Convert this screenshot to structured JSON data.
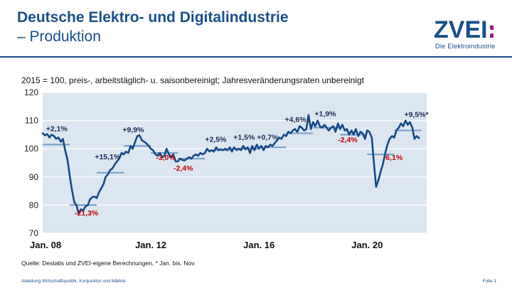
{
  "header": {
    "title": "Deutsche Elektro- und Digitalindustrie",
    "subtitle": "– Produktion",
    "logo_text": "ZVEI:",
    "logo_tagline": "Die Elektroindustrie"
  },
  "colors": {
    "brand": "#1a4f8a",
    "line": "#164a86",
    "average": "#7da3c9",
    "plot_bg": "#dce6f1",
    "positive_label": "#1a2a55",
    "negative_label": "#c00000"
  },
  "chart_data": {
    "type": "line",
    "subtitle": "2015 = 100,  preis-,  arbeitstäglich-  u.  saisonbereinigt;  Jahresveränderungsraten  unbereinigt",
    "ylim": [
      70,
      120
    ],
    "yticks": [
      120,
      110,
      100,
      90,
      80,
      70
    ],
    "xlim": [
      2008.0,
      2022.2
    ],
    "xticks": [
      {
        "label": "Jan. 08",
        "x": 2008.0
      },
      {
        "label": "Jan. 12",
        "x": 2012.0
      },
      {
        "label": "Jan. 16",
        "x": 2016.0
      },
      {
        "label": "Jan. 20",
        "x": 2020.0
      }
    ],
    "series": [
      {
        "points": [
          [
            2008.0,
            105.5
          ],
          [
            2008.08,
            104.8
          ],
          [
            2008.17,
            105.2
          ],
          [
            2008.25,
            104.0
          ],
          [
            2008.33,
            105.0
          ],
          [
            2008.42,
            104.5
          ],
          [
            2008.5,
            103.5
          ],
          [
            2008.58,
            104.0
          ],
          [
            2008.67,
            102.5
          ],
          [
            2008.75,
            103.5
          ],
          [
            2008.83,
            99.5
          ],
          [
            2008.92,
            96.0
          ],
          [
            2009.0,
            90.5
          ],
          [
            2009.08,
            85.5
          ],
          [
            2009.17,
            81.0
          ],
          [
            2009.25,
            80.0
          ],
          [
            2009.33,
            77.0
          ],
          [
            2009.42,
            78.5
          ],
          [
            2009.5,
            78.0
          ],
          [
            2009.58,
            79.5
          ],
          [
            2009.67,
            80.0
          ],
          [
            2009.75,
            82.0
          ],
          [
            2009.83,
            82.8
          ],
          [
            2009.92,
            83.0
          ],
          [
            2010.0,
            82.5
          ],
          [
            2010.08,
            84.5
          ],
          [
            2010.17,
            86.0
          ],
          [
            2010.25,
            87.5
          ],
          [
            2010.33,
            90.0
          ],
          [
            2010.42,
            91.0
          ],
          [
            2010.5,
            92.5
          ],
          [
            2010.58,
            93.0
          ],
          [
            2010.67,
            94.5
          ],
          [
            2010.75,
            95.5
          ],
          [
            2010.83,
            96.5
          ],
          [
            2010.92,
            98.5
          ],
          [
            2011.0,
            98.0
          ],
          [
            2011.08,
            99.0
          ],
          [
            2011.17,
            98.5
          ],
          [
            2011.25,
            101.0
          ],
          [
            2011.33,
            100.0
          ],
          [
            2011.42,
            102.5
          ],
          [
            2011.5,
            104.5
          ],
          [
            2011.58,
            104.8
          ],
          [
            2011.67,
            103.0
          ],
          [
            2011.75,
            102.5
          ],
          [
            2011.83,
            102.0
          ],
          [
            2011.92,
            101.0
          ],
          [
            2012.0,
            100.0
          ],
          [
            2012.08,
            99.5
          ],
          [
            2012.17,
            98.0
          ],
          [
            2012.25,
            97.5
          ],
          [
            2012.33,
            98.5
          ],
          [
            2012.42,
            97.0
          ],
          [
            2012.5,
            97.5
          ],
          [
            2012.58,
            100.0
          ],
          [
            2012.67,
            98.0
          ],
          [
            2012.75,
            97.0
          ],
          [
            2012.83,
            98.0
          ],
          [
            2012.92,
            95.5
          ],
          [
            2013.0,
            95.5
          ],
          [
            2013.08,
            96.5
          ],
          [
            2013.17,
            96.0
          ],
          [
            2013.25,
            95.8
          ],
          [
            2013.33,
            96.5
          ],
          [
            2013.42,
            97.0
          ],
          [
            2013.5,
            96.5
          ],
          [
            2013.58,
            97.5
          ],
          [
            2013.67,
            98.0
          ],
          [
            2013.75,
            97.5
          ],
          [
            2013.83,
            98.5
          ],
          [
            2013.92,
            98.0
          ],
          [
            2014.0,
            98.5
          ],
          [
            2014.08,
            100.0
          ],
          [
            2014.17,
            99.0
          ],
          [
            2014.25,
            99.5
          ],
          [
            2014.33,
            99.0
          ],
          [
            2014.42,
            100.5
          ],
          [
            2014.5,
            99.5
          ],
          [
            2014.58,
            99.8
          ],
          [
            2014.67,
            99.5
          ],
          [
            2014.75,
            100.0
          ],
          [
            2014.83,
            99.5
          ],
          [
            2014.92,
            100.5
          ],
          [
            2015.0,
            99.0
          ],
          [
            2015.08,
            100.5
          ],
          [
            2015.17,
            99.5
          ],
          [
            2015.25,
            100.0
          ],
          [
            2015.33,
            99.5
          ],
          [
            2015.42,
            101.0
          ],
          [
            2015.5,
            99.8
          ],
          [
            2015.58,
            100.5
          ],
          [
            2015.67,
            98.5
          ],
          [
            2015.75,
            101.0
          ],
          [
            2015.83,
            99.5
          ],
          [
            2015.92,
            101.5
          ],
          [
            2016.0,
            100.0
          ],
          [
            2016.08,
            101.0
          ],
          [
            2016.17,
            99.5
          ],
          [
            2016.25,
            101.0
          ],
          [
            2016.33,
            100.5
          ],
          [
            2016.42,
            101.5
          ],
          [
            2016.5,
            101.0
          ],
          [
            2016.58,
            102.0
          ],
          [
            2016.67,
            103.0
          ],
          [
            2016.75,
            104.0
          ],
          [
            2016.83,
            103.5
          ],
          [
            2016.92,
            105.0
          ],
          [
            2017.0,
            104.5
          ],
          [
            2017.08,
            106.0
          ],
          [
            2017.17,
            105.5
          ],
          [
            2017.25,
            106.5
          ],
          [
            2017.33,
            107.0
          ],
          [
            2017.42,
            106.0
          ],
          [
            2017.5,
            108.0
          ],
          [
            2017.58,
            107.5
          ],
          [
            2017.67,
            106.5
          ],
          [
            2017.75,
            107.0
          ],
          [
            2017.83,
            112.0
          ],
          [
            2017.92,
            107.0
          ],
          [
            2018.0,
            109.5
          ],
          [
            2018.08,
            108.0
          ],
          [
            2018.17,
            110.0
          ],
          [
            2018.25,
            108.0
          ],
          [
            2018.33,
            107.5
          ],
          [
            2018.42,
            108.5
          ],
          [
            2018.5,
            107.5
          ],
          [
            2018.58,
            106.5
          ],
          [
            2018.67,
            107.5
          ],
          [
            2018.75,
            108.0
          ],
          [
            2018.83,
            106.0
          ],
          [
            2018.92,
            109.0
          ],
          [
            2019.0,
            107.0
          ],
          [
            2019.08,
            108.5
          ],
          [
            2019.17,
            106.5
          ],
          [
            2019.25,
            107.0
          ],
          [
            2019.33,
            105.0
          ],
          [
            2019.42,
            106.5
          ],
          [
            2019.5,
            105.0
          ],
          [
            2019.58,
            107.0
          ],
          [
            2019.67,
            104.5
          ],
          [
            2019.75,
            106.0
          ],
          [
            2019.83,
            105.5
          ],
          [
            2019.92,
            103.5
          ],
          [
            2020.0,
            106.5
          ],
          [
            2020.08,
            106.0
          ],
          [
            2020.17,
            104.0
          ],
          [
            2020.25,
            95.0
          ],
          [
            2020.33,
            86.5
          ],
          [
            2020.42,
            89.0
          ],
          [
            2020.5,
            92.0
          ],
          [
            2020.58,
            94.5
          ],
          [
            2020.67,
            98.5
          ],
          [
            2020.75,
            101.5
          ],
          [
            2020.83,
            103.5
          ],
          [
            2020.92,
            104.5
          ],
          [
            2021.0,
            104.0
          ],
          [
            2021.08,
            106.5
          ],
          [
            2021.17,
            107.5
          ],
          [
            2021.25,
            109.0
          ],
          [
            2021.33,
            108.0
          ],
          [
            2021.42,
            110.0
          ],
          [
            2021.5,
            108.5
          ],
          [
            2021.58,
            109.5
          ],
          [
            2021.67,
            107.5
          ],
          [
            2021.75,
            103.5
          ],
          [
            2021.83,
            104.5
          ],
          [
            2021.92,
            103.8
          ]
        ]
      }
    ],
    "annual_averages": [
      {
        "x0": 2008.0,
        "x1": 2009.0,
        "y": 101.5
      },
      {
        "x0": 2009.0,
        "x1": 2010.0,
        "y": 80.0
      },
      {
        "x0": 2010.0,
        "x1": 2011.0,
        "y": 91.5
      },
      {
        "x0": 2011.0,
        "x1": 2012.0,
        "y": 101.0
      },
      {
        "x0": 2012.0,
        "x1": 2013.0,
        "y": 98.5
      },
      {
        "x0": 2013.0,
        "x1": 2014.0,
        "y": 96.5
      },
      {
        "x0": 2014.0,
        "x1": 2015.0,
        "y": 99.5
      },
      {
        "x0": 2015.0,
        "x1": 2016.0,
        "y": 100.0
      },
      {
        "x0": 2016.0,
        "x1": 2017.0,
        "y": 100.5
      },
      {
        "x0": 2017.0,
        "x1": 2018.0,
        "y": 105.5
      },
      {
        "x0": 2018.0,
        "x1": 2019.0,
        "y": 107.5
      },
      {
        "x0": 2019.0,
        "x1": 2020.0,
        "y": 105.0
      },
      {
        "x0": 2020.0,
        "x1": 2021.0,
        "y": 98.0
      },
      {
        "x0": 2021.0,
        "x1": 2022.0,
        "y": 106.5
      }
    ],
    "annotations": [
      {
        "text": "+2,1%",
        "x": 2008.52,
        "y": 106.3,
        "sign": "positive"
      },
      {
        "text": "-21,3%",
        "x": 2009.62,
        "y": 76.3,
        "sign": "negative"
      },
      {
        "text": "+15,1%",
        "x": 2010.4,
        "y": 96.3,
        "sign": "positive"
      },
      {
        "text": "+9,9%",
        "x": 2011.35,
        "y": 105.8,
        "sign": "positive"
      },
      {
        "text": "-3,0%",
        "x": 2012.55,
        "y": 96.0,
        "sign": "negative"
      },
      {
        "text": "-2,4%",
        "x": 2013.2,
        "y": 92.2,
        "sign": "negative"
      },
      {
        "text": "+2,5%",
        "x": 2014.4,
        "y": 102.5,
        "sign": "positive"
      },
      {
        "text": "+1,5%",
        "x": 2015.45,
        "y": 103.2,
        "sign": "positive"
      },
      {
        "text": "+0,7%",
        "x": 2016.32,
        "y": 103.2,
        "sign": "positive"
      },
      {
        "text": "+4,6%",
        "x": 2017.35,
        "y": 109.5,
        "sign": "positive"
      },
      {
        "text": "+1,9%",
        "x": 2018.45,
        "y": 111.5,
        "sign": "positive"
      },
      {
        "text": "-2,4%",
        "x": 2019.28,
        "y": 102.3,
        "sign": "negative"
      },
      {
        "text": "-6,1%",
        "x": 2020.95,
        "y": 96.0,
        "sign": "negative"
      },
      {
        "text": "+9,5%*",
        "x": 2021.82,
        "y": 111.3,
        "sign": "positive"
      }
    ]
  },
  "footer": {
    "source": "Quelle: Destatis und ZVEI-eigene Berechnungen,  * Jan. bis. Nov.",
    "department": "Abteilung Wirtschaftspolitik, Konjunktur und Märkte",
    "slide": "Folie 1"
  }
}
